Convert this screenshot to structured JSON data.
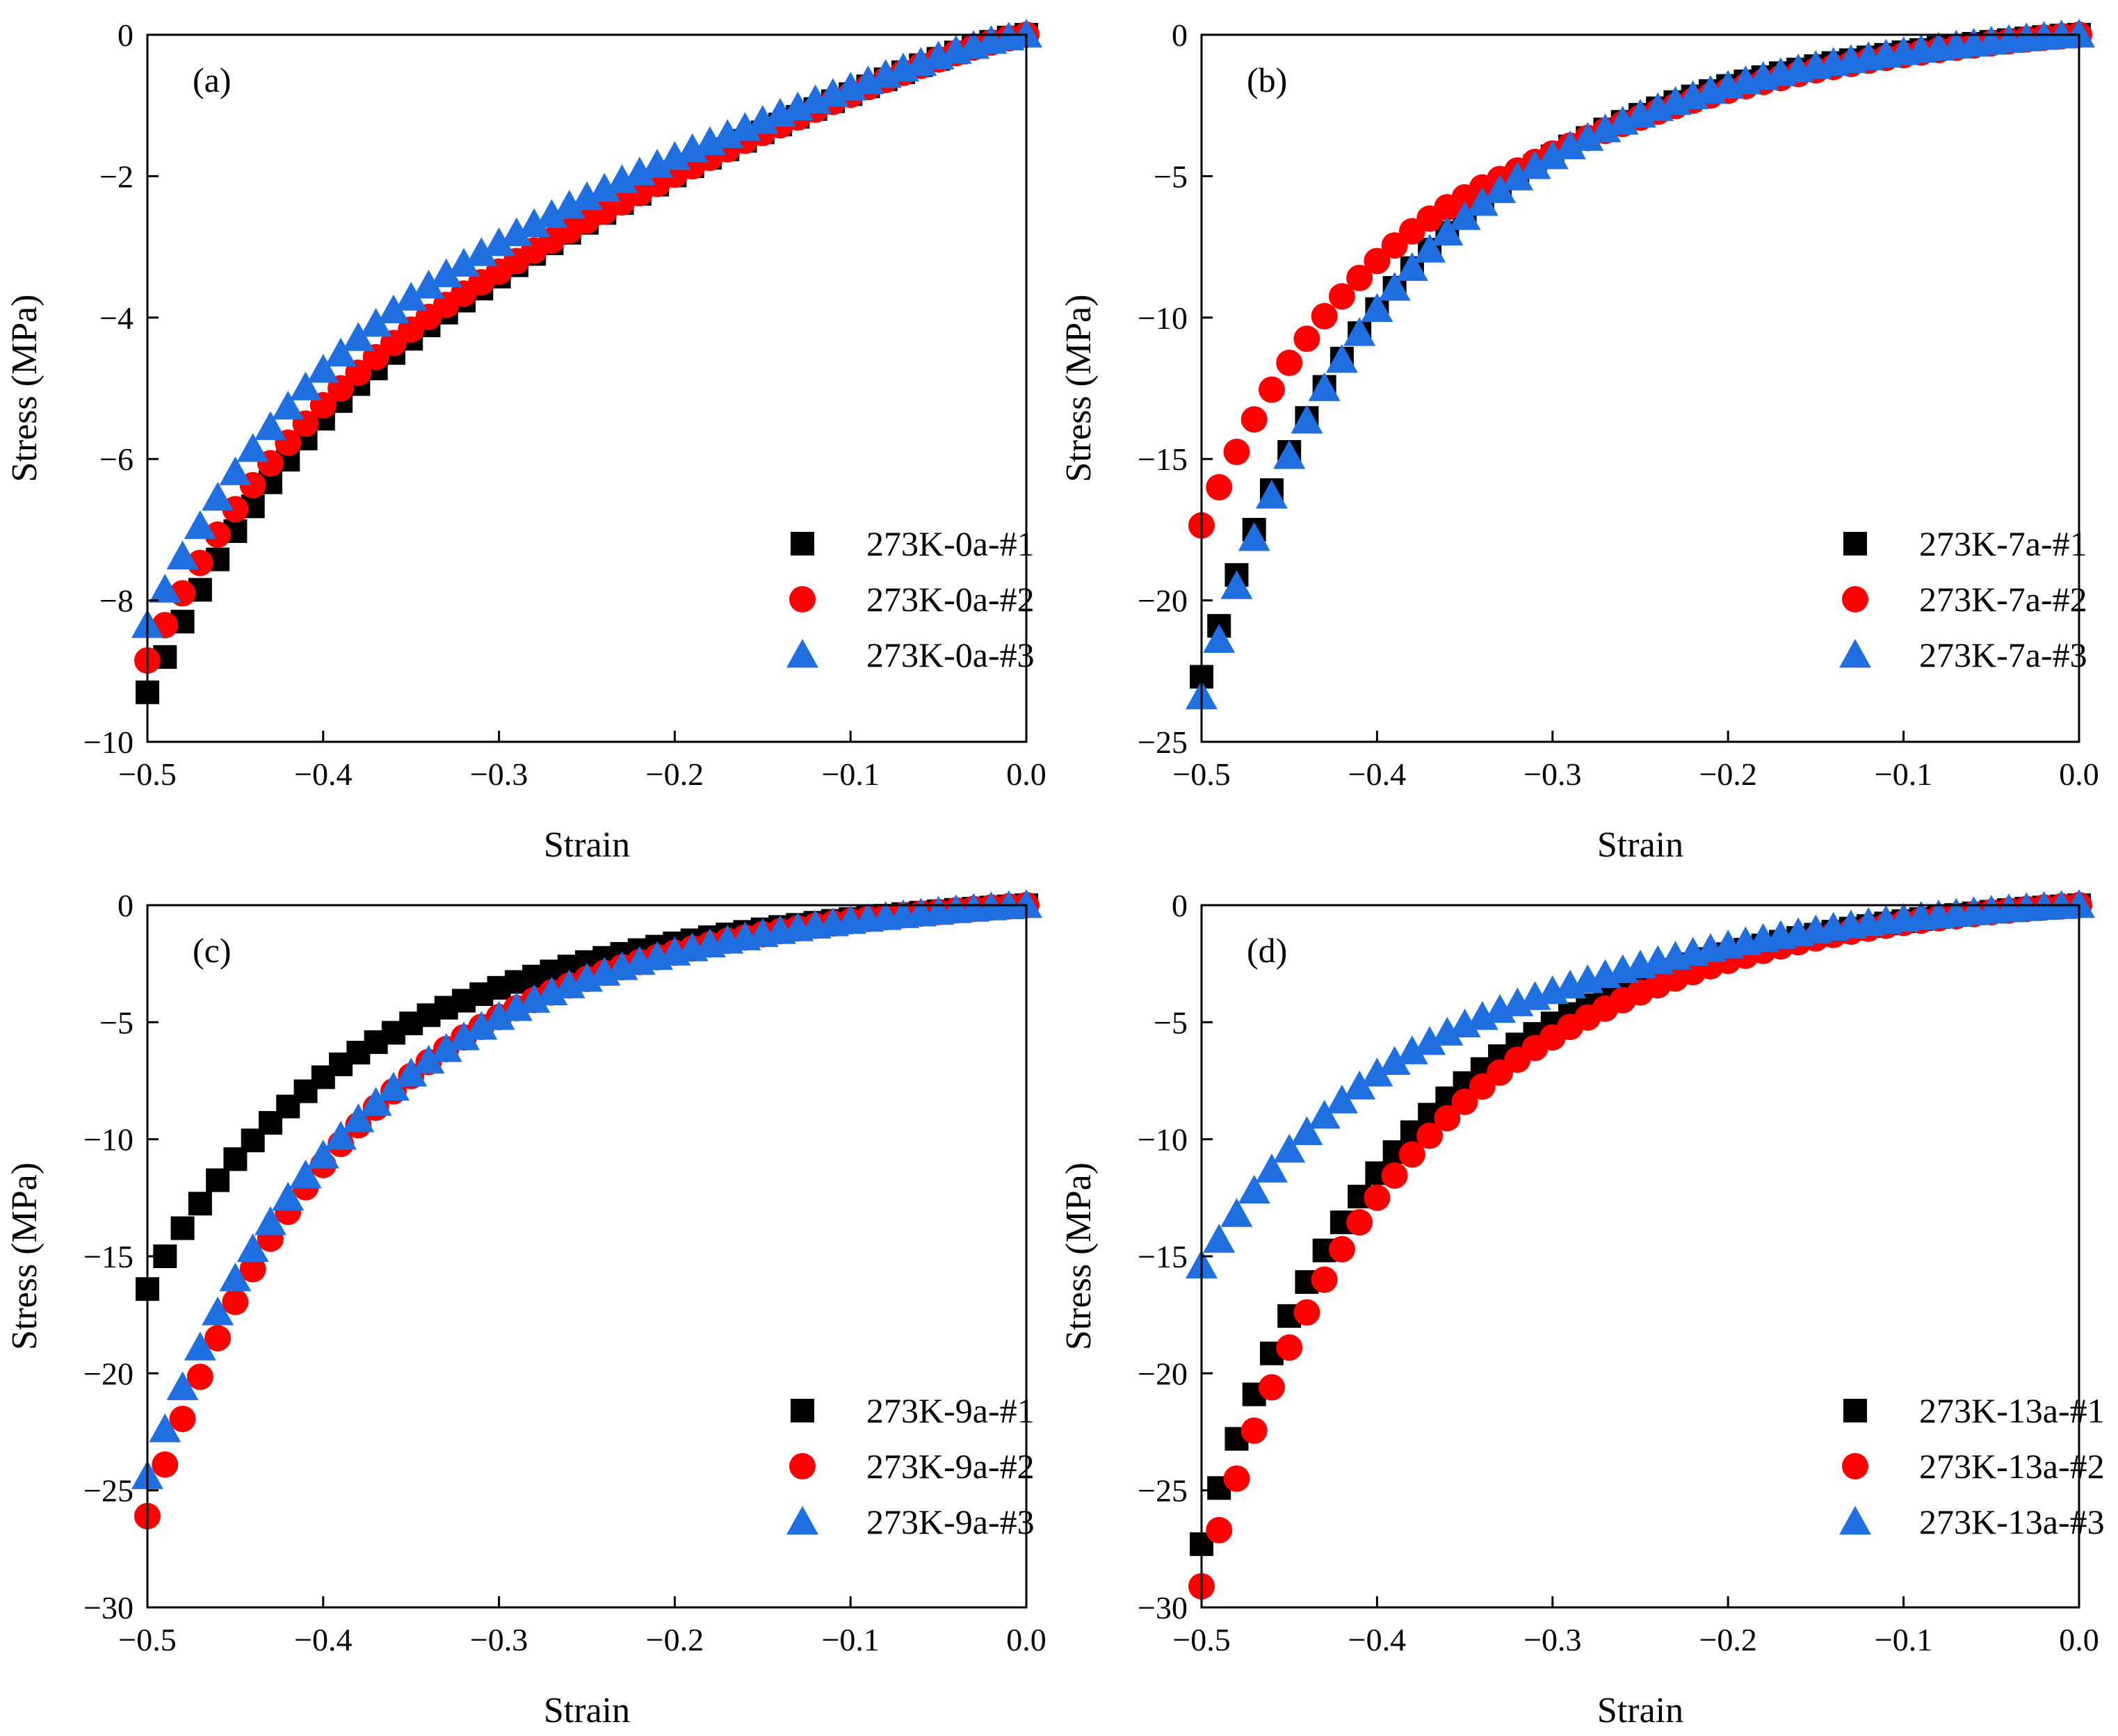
{
  "colors": {
    "series1": "#000000",
    "series2": "#ff0000",
    "series3": "#1f6fe0"
  },
  "chart_data": [
    {
      "type": "scatter",
      "panel_label": "(a)",
      "xlabel": "Strain",
      "ylabel": "Stress (MPa)",
      "xlim": [
        -0.5,
        0.0
      ],
      "ylim": [
        -10,
        0
      ],
      "xticks": [
        -0.5,
        -0.4,
        -0.3,
        -0.2,
        -0.1,
        0.0
      ],
      "xtick_labels": [
        "−0.5",
        "−0.4",
        "−0.3",
        "−0.2",
        "−0.1",
        "0.0"
      ],
      "yticks": [
        0,
        -2,
        -4,
        -6,
        -8,
        -10
      ],
      "ytick_labels": [
        "0",
        "−2",
        "−4",
        "−6",
        "−8",
        "−10"
      ],
      "grid": false,
      "legend_position": "lower-right",
      "x": [
        -0.5,
        -0.49,
        -0.48,
        -0.47,
        -0.46,
        -0.45,
        -0.44,
        -0.43,
        -0.42,
        -0.41,
        -0.4,
        -0.39,
        -0.38,
        -0.37,
        -0.36,
        -0.35,
        -0.34,
        -0.33,
        -0.32,
        -0.31,
        -0.3,
        -0.29,
        -0.28,
        -0.27,
        -0.26,
        -0.25,
        -0.24,
        -0.23,
        -0.22,
        -0.21,
        -0.2,
        -0.19,
        -0.18,
        -0.17,
        -0.16,
        -0.15,
        -0.14,
        -0.13,
        -0.12,
        -0.11,
        -0.1,
        -0.09,
        -0.08,
        -0.07,
        -0.06,
        -0.05,
        -0.04,
        -0.03,
        -0.02,
        -0.01,
        0.0
      ],
      "series": [
        {
          "name": "273K-0a-#1",
          "marker": "square",
          "values": [
            -9.3,
            -8.8,
            -8.3,
            -7.85,
            -7.42,
            -7.02,
            -6.67,
            -6.33,
            -6.01,
            -5.71,
            -5.43,
            -5.18,
            -4.94,
            -4.72,
            -4.5,
            -4.3,
            -4.11,
            -3.93,
            -3.76,
            -3.59,
            -3.42,
            -3.26,
            -3.1,
            -2.95,
            -2.8,
            -2.66,
            -2.52,
            -2.38,
            -2.25,
            -2.12,
            -1.99,
            -1.86,
            -1.74,
            -1.62,
            -1.5,
            -1.38,
            -1.27,
            -1.16,
            -1.05,
            -0.94,
            -0.84,
            -0.73,
            -0.63,
            -0.53,
            -0.43,
            -0.34,
            -0.25,
            -0.17,
            -0.1,
            -0.04,
            0.0
          ]
        },
        {
          "name": "273K-0a-#2",
          "marker": "circle",
          "values": [
            -8.85,
            -8.35,
            -7.9,
            -7.47,
            -7.07,
            -6.71,
            -6.37,
            -6.06,
            -5.77,
            -5.5,
            -5.24,
            -5.0,
            -4.78,
            -4.56,
            -4.36,
            -4.17,
            -3.99,
            -3.82,
            -3.66,
            -3.5,
            -3.35,
            -3.2,
            -3.05,
            -2.91,
            -2.77,
            -2.63,
            -2.5,
            -2.37,
            -2.24,
            -2.11,
            -1.98,
            -1.86,
            -1.74,
            -1.62,
            -1.5,
            -1.39,
            -1.28,
            -1.17,
            -1.06,
            -0.95,
            -0.85,
            -0.74,
            -0.64,
            -0.54,
            -0.44,
            -0.35,
            -0.26,
            -0.18,
            -0.11,
            -0.05,
            0.0
          ]
        },
        {
          "name": "273K-0a-#3",
          "marker": "triangle",
          "values": [
            -8.35,
            -7.85,
            -7.38,
            -6.95,
            -6.55,
            -6.19,
            -5.86,
            -5.55,
            -5.26,
            -4.99,
            -4.74,
            -4.51,
            -4.29,
            -4.09,
            -3.9,
            -3.72,
            -3.55,
            -3.39,
            -3.24,
            -3.09,
            -2.95,
            -2.81,
            -2.68,
            -2.55,
            -2.42,
            -2.3,
            -2.18,
            -2.06,
            -1.95,
            -1.84,
            -1.73,
            -1.62,
            -1.52,
            -1.42,
            -1.32,
            -1.22,
            -1.12,
            -1.03,
            -0.93,
            -0.84,
            -0.75,
            -0.66,
            -0.57,
            -0.48,
            -0.4,
            -0.31,
            -0.23,
            -0.16,
            -0.09,
            -0.04,
            0.0
          ]
        }
      ]
    },
    {
      "type": "scatter",
      "panel_label": "(b)",
      "xlabel": "Strain",
      "ylabel": "Stress (MPa)",
      "xlim": [
        -0.5,
        0.0
      ],
      "ylim": [
        -25,
        0
      ],
      "xticks": [
        -0.5,
        -0.4,
        -0.3,
        -0.2,
        -0.1,
        0.0
      ],
      "xtick_labels": [
        "−0.5",
        "−0.4",
        "−0.3",
        "−0.2",
        "−0.1",
        "0.0"
      ],
      "yticks": [
        0,
        -5,
        -10,
        -15,
        -20,
        -25
      ],
      "ytick_labels": [
        "0",
        "−5",
        "−10",
        "−15",
        "−20",
        "−25"
      ],
      "grid": false,
      "legend_position": "lower-right",
      "x": [
        -0.5,
        -0.49,
        -0.48,
        -0.47,
        -0.46,
        -0.45,
        -0.44,
        -0.43,
        -0.42,
        -0.41,
        -0.4,
        -0.39,
        -0.38,
        -0.37,
        -0.36,
        -0.35,
        -0.34,
        -0.33,
        -0.32,
        -0.31,
        -0.3,
        -0.29,
        -0.28,
        -0.27,
        -0.26,
        -0.25,
        -0.24,
        -0.23,
        -0.22,
        -0.21,
        -0.2,
        -0.19,
        -0.18,
        -0.17,
        -0.16,
        -0.15,
        -0.14,
        -0.13,
        -0.12,
        -0.11,
        -0.1,
        -0.09,
        -0.08,
        -0.07,
        -0.06,
        -0.05,
        -0.04,
        -0.03,
        -0.02,
        -0.01,
        0.0
      ],
      "series": [
        {
          "name": "273K-7a-#1",
          "marker": "square",
          "values": [
            -22.7,
            -20.9,
            -19.1,
            -17.5,
            -16.1,
            -14.75,
            -13.55,
            -12.45,
            -11.45,
            -10.55,
            -9.7,
            -8.95,
            -8.25,
            -7.6,
            -7.0,
            -6.45,
            -5.95,
            -5.5,
            -5.05,
            -4.65,
            -4.3,
            -3.95,
            -3.65,
            -3.35,
            -3.08,
            -2.83,
            -2.6,
            -2.38,
            -2.18,
            -1.99,
            -1.81,
            -1.65,
            -1.5,
            -1.36,
            -1.23,
            -1.11,
            -1.0,
            -0.9,
            -0.8,
            -0.71,
            -0.62,
            -0.54,
            -0.46,
            -0.39,
            -0.32,
            -0.25,
            -0.19,
            -0.13,
            -0.08,
            -0.03,
            0.0
          ]
        },
        {
          "name": "273K-7a-#2",
          "marker": "circle",
          "values": [
            -17.35,
            -16.0,
            -14.75,
            -13.6,
            -12.55,
            -11.6,
            -10.75,
            -9.95,
            -9.25,
            -8.6,
            -8.0,
            -7.45,
            -6.95,
            -6.5,
            -6.1,
            -5.75,
            -5.4,
            -5.1,
            -4.8,
            -4.5,
            -4.2,
            -3.92,
            -3.65,
            -3.4,
            -3.15,
            -2.93,
            -2.72,
            -2.52,
            -2.33,
            -2.15,
            -1.98,
            -1.82,
            -1.67,
            -1.53,
            -1.39,
            -1.26,
            -1.14,
            -1.03,
            -0.92,
            -0.82,
            -0.72,
            -0.63,
            -0.54,
            -0.46,
            -0.38,
            -0.3,
            -0.23,
            -0.16,
            -0.1,
            -0.05,
            0.0
          ]
        },
        {
          "name": "273K-7a-#3",
          "marker": "triangle",
          "values": [
            -23.4,
            -21.4,
            -19.5,
            -17.8,
            -16.3,
            -14.9,
            -13.65,
            -12.5,
            -11.5,
            -10.55,
            -9.7,
            -8.95,
            -8.25,
            -7.6,
            -7.0,
            -6.45,
            -5.95,
            -5.5,
            -5.05,
            -4.65,
            -4.3,
            -3.95,
            -3.65,
            -3.35,
            -3.08,
            -2.83,
            -2.6,
            -2.38,
            -2.18,
            -1.99,
            -1.81,
            -1.65,
            -1.5,
            -1.36,
            -1.23,
            -1.11,
            -1.0,
            -0.9,
            -0.8,
            -0.71,
            -0.62,
            -0.54,
            -0.46,
            -0.39,
            -0.32,
            -0.25,
            -0.19,
            -0.13,
            -0.08,
            -0.03,
            0.0
          ]
        }
      ]
    },
    {
      "type": "scatter",
      "panel_label": "(c)",
      "xlabel": "Strain",
      "ylabel": "Stress (MPa)",
      "xlim": [
        -0.5,
        0.0
      ],
      "ylim": [
        -30,
        0
      ],
      "xticks": [
        -0.5,
        -0.4,
        -0.3,
        -0.2,
        -0.1,
        0.0
      ],
      "xtick_labels": [
        "−0.5",
        "−0.4",
        "−0.3",
        "−0.2",
        "−0.1",
        "0.0"
      ],
      "yticks": [
        0,
        -5,
        -10,
        -15,
        -20,
        -25,
        -30
      ],
      "ytick_labels": [
        "0",
        "−5",
        "−10",
        "−15",
        "−20",
        "−25",
        "−30"
      ],
      "grid": false,
      "legend_position": "lower-right",
      "x": [
        -0.5,
        -0.49,
        -0.48,
        -0.47,
        -0.46,
        -0.45,
        -0.44,
        -0.43,
        -0.42,
        -0.41,
        -0.4,
        -0.39,
        -0.38,
        -0.37,
        -0.36,
        -0.35,
        -0.34,
        -0.33,
        -0.32,
        -0.31,
        -0.3,
        -0.29,
        -0.28,
        -0.27,
        -0.26,
        -0.25,
        -0.24,
        -0.23,
        -0.22,
        -0.21,
        -0.2,
        -0.19,
        -0.18,
        -0.17,
        -0.16,
        -0.15,
        -0.14,
        -0.13,
        -0.12,
        -0.11,
        -0.1,
        -0.09,
        -0.08,
        -0.07,
        -0.06,
        -0.05,
        -0.04,
        -0.03,
        -0.02,
        -0.01,
        0.0
      ],
      "series": [
        {
          "name": "273K-9a-#1",
          "marker": "square",
          "values": [
            -16.4,
            -15.0,
            -13.8,
            -12.75,
            -11.75,
            -10.85,
            -10.05,
            -9.3,
            -8.6,
            -7.95,
            -7.35,
            -6.8,
            -6.3,
            -5.85,
            -5.45,
            -5.05,
            -4.7,
            -4.38,
            -4.08,
            -3.8,
            -3.53,
            -3.28,
            -3.05,
            -2.83,
            -2.62,
            -2.43,
            -2.25,
            -2.08,
            -1.92,
            -1.77,
            -1.63,
            -1.5,
            -1.37,
            -1.25,
            -1.14,
            -1.03,
            -0.93,
            -0.84,
            -0.75,
            -0.67,
            -0.59,
            -0.52,
            -0.45,
            -0.38,
            -0.32,
            -0.26,
            -0.2,
            -0.15,
            -0.1,
            -0.05,
            0.0
          ]
        },
        {
          "name": "273K-9a-#2",
          "marker": "circle",
          "values": [
            -26.1,
            -23.9,
            -21.95,
            -20.15,
            -18.5,
            -16.95,
            -15.55,
            -14.25,
            -13.1,
            -12.05,
            -11.1,
            -10.2,
            -9.4,
            -8.65,
            -7.95,
            -7.3,
            -6.7,
            -6.15,
            -5.65,
            -5.2,
            -4.78,
            -4.4,
            -4.05,
            -3.73,
            -3.43,
            -3.15,
            -2.89,
            -2.65,
            -2.43,
            -2.22,
            -2.03,
            -1.85,
            -1.68,
            -1.52,
            -1.38,
            -1.24,
            -1.11,
            -0.99,
            -0.88,
            -0.78,
            -0.68,
            -0.59,
            -0.51,
            -0.43,
            -0.36,
            -0.29,
            -0.22,
            -0.16,
            -0.1,
            -0.05,
            0.0
          ]
        },
        {
          "name": "273K-9a-#3",
          "marker": "triangle",
          "values": [
            -24.4,
            -22.4,
            -20.6,
            -18.9,
            -17.4,
            -15.95,
            -14.7,
            -13.55,
            -12.5,
            -11.55,
            -10.7,
            -9.9,
            -9.15,
            -8.45,
            -7.8,
            -7.2,
            -6.65,
            -6.15,
            -5.65,
            -5.2,
            -4.78,
            -4.4,
            -4.05,
            -3.73,
            -3.43,
            -3.15,
            -2.89,
            -2.65,
            -2.43,
            -2.22,
            -2.03,
            -1.85,
            -1.68,
            -1.52,
            -1.38,
            -1.24,
            -1.11,
            -0.99,
            -0.88,
            -0.78,
            -0.68,
            -0.59,
            -0.51,
            -0.43,
            -0.36,
            -0.29,
            -0.22,
            -0.16,
            -0.1,
            -0.05,
            0.0
          ]
        }
      ]
    },
    {
      "type": "scatter",
      "panel_label": "(d)",
      "xlabel": "Strain",
      "ylabel": "Stress (MPa)",
      "xlim": [
        -0.5,
        0.0
      ],
      "ylim": [
        -30,
        0
      ],
      "xticks": [
        -0.5,
        -0.4,
        -0.3,
        -0.2,
        -0.1,
        0.0
      ],
      "xtick_labels": [
        "−0.5",
        "−0.4",
        "−0.3",
        "−0.2",
        "−0.1",
        "0.0"
      ],
      "yticks": [
        0,
        -5,
        -10,
        -15,
        -20,
        -25,
        -30
      ],
      "ytick_labels": [
        "0",
        "−5",
        "−10",
        "−15",
        "−20",
        "−25",
        "−30"
      ],
      "grid": false,
      "legend_position": "lower-right",
      "x": [
        -0.5,
        -0.49,
        -0.48,
        -0.47,
        -0.46,
        -0.45,
        -0.44,
        -0.43,
        -0.42,
        -0.41,
        -0.4,
        -0.39,
        -0.38,
        -0.37,
        -0.36,
        -0.35,
        -0.34,
        -0.33,
        -0.32,
        -0.31,
        -0.3,
        -0.29,
        -0.28,
        -0.27,
        -0.26,
        -0.25,
        -0.24,
        -0.23,
        -0.22,
        -0.21,
        -0.2,
        -0.19,
        -0.18,
        -0.17,
        -0.16,
        -0.15,
        -0.14,
        -0.13,
        -0.12,
        -0.11,
        -0.1,
        -0.09,
        -0.08,
        -0.07,
        -0.06,
        -0.05,
        -0.04,
        -0.03,
        -0.02,
        -0.01,
        0.0
      ],
      "series": [
        {
          "name": "273K-13a-#1",
          "marker": "square",
          "values": [
            -27.3,
            -24.9,
            -22.8,
            -20.9,
            -19.15,
            -17.55,
            -16.1,
            -14.75,
            -13.55,
            -12.45,
            -11.45,
            -10.55,
            -9.7,
            -8.95,
            -8.25,
            -7.6,
            -7.0,
            -6.45,
            -5.95,
            -5.5,
            -5.05,
            -4.65,
            -4.28,
            -3.93,
            -3.6,
            -3.3,
            -3.02,
            -2.76,
            -2.52,
            -2.3,
            -2.09,
            -1.9,
            -1.72,
            -1.56,
            -1.4,
            -1.26,
            -1.13,
            -1.0,
            -0.89,
            -0.78,
            -0.68,
            -0.59,
            -0.5,
            -0.42,
            -0.35,
            -0.28,
            -0.21,
            -0.15,
            -0.1,
            -0.05,
            0.0
          ]
        },
        {
          "name": "273K-13a-#2",
          "marker": "circle",
          "values": [
            -29.1,
            -26.7,
            -24.5,
            -22.45,
            -20.6,
            -18.9,
            -17.4,
            -16.0,
            -14.7,
            -13.55,
            -12.5,
            -11.55,
            -10.65,
            -9.85,
            -9.1,
            -8.4,
            -7.75,
            -7.15,
            -6.6,
            -6.1,
            -5.65,
            -5.2,
            -4.8,
            -4.42,
            -4.06,
            -3.73,
            -3.42,
            -3.13,
            -2.86,
            -2.61,
            -2.38,
            -2.16,
            -1.95,
            -1.76,
            -1.58,
            -1.42,
            -1.27,
            -1.13,
            -1.0,
            -0.88,
            -0.76,
            -0.66,
            -0.56,
            -0.47,
            -0.38,
            -0.3,
            -0.23,
            -0.16,
            -0.1,
            -0.05,
            0.0
          ]
        },
        {
          "name": "273K-13a-#3",
          "marker": "triangle",
          "values": [
            -15.4,
            -14.3,
            -13.2,
            -12.2,
            -11.3,
            -10.45,
            -9.7,
            -9.0,
            -8.35,
            -7.75,
            -7.2,
            -6.7,
            -6.25,
            -5.85,
            -5.45,
            -5.1,
            -4.78,
            -4.48,
            -4.2,
            -3.93,
            -3.68,
            -3.44,
            -3.21,
            -2.99,
            -2.78,
            -2.58,
            -2.39,
            -2.21,
            -2.04,
            -1.88,
            -1.73,
            -1.59,
            -1.45,
            -1.32,
            -1.2,
            -1.08,
            -0.97,
            -0.87,
            -0.77,
            -0.68,
            -0.59,
            -0.51,
            -0.44,
            -0.37,
            -0.3,
            -0.24,
            -0.18,
            -0.13,
            -0.08,
            -0.04,
            0.0
          ]
        }
      ]
    }
  ]
}
